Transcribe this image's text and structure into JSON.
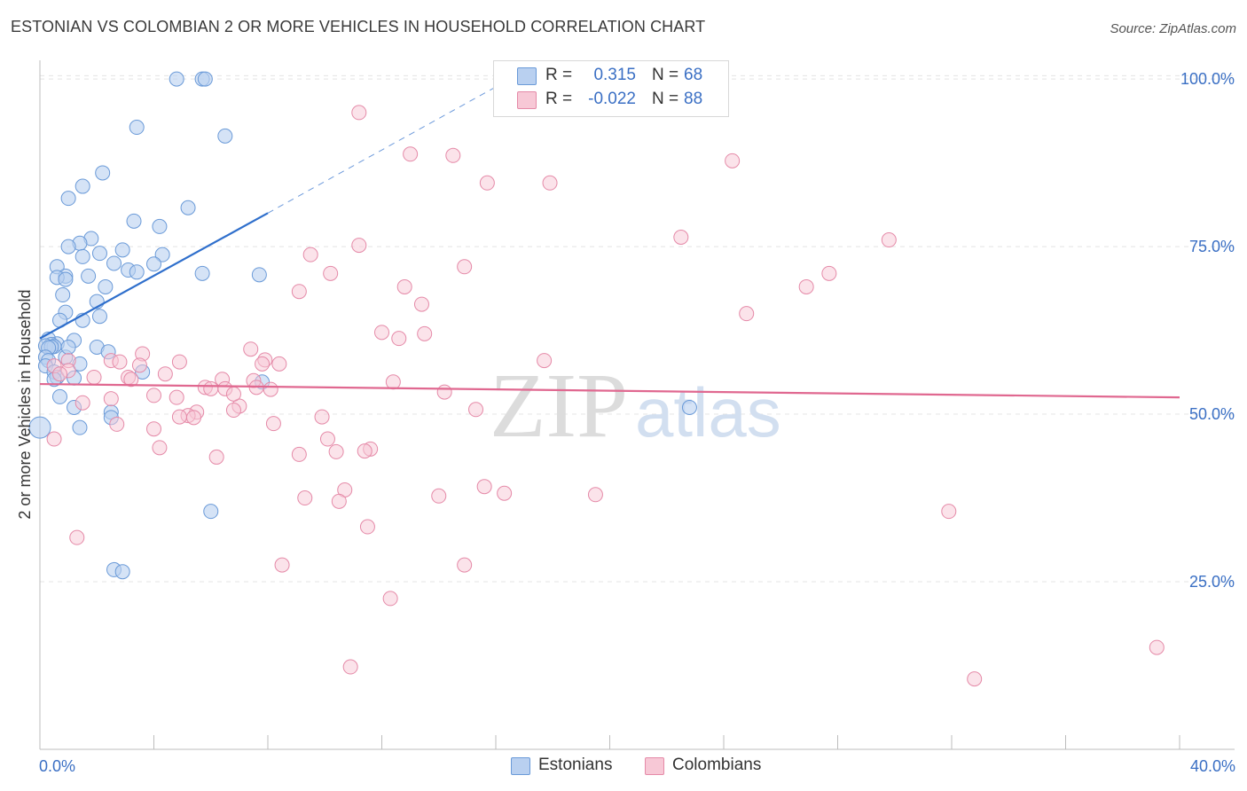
{
  "title": "ESTONIAN VS COLOMBIAN 2 OR MORE VEHICLES IN HOUSEHOLD CORRELATION CHART",
  "source": "Source: ZipAtlas.com",
  "watermark": {
    "zip": "ZIP",
    "atlas": "atlas"
  },
  "legend_top": {
    "rows": [
      {
        "r_label": "R =",
        "r_value": "0.315",
        "n_label": "N =",
        "n_value": "68"
      },
      {
        "r_label": "R =",
        "r_value": "-0.022",
        "n_label": "N =",
        "n_value": "88"
      }
    ]
  },
  "legend_bottom": {
    "items": [
      "Estonians",
      "Colombians"
    ]
  },
  "colors": {
    "estonians_fill": "#b9d0f0",
    "estonians_stroke": "#6a9ad8",
    "estonians_line": "#2f6fcc",
    "colombians_fill": "#f7c8d6",
    "colombians_stroke": "#e58aa8",
    "colombians_line": "#e06890",
    "tick_label": "#3a6fc4",
    "grid": "#e4e4e4"
  },
  "chart_data": {
    "type": "scatter",
    "title": "ESTONIAN VS COLOMBIAN 2 OR MORE VEHICLES IN HOUSEHOLD CORRELATION CHART",
    "xlabel": "",
    "ylabel": "2 or more Vehicles in Household",
    "xlim": [
      0,
      40
    ],
    "ylim": [
      0,
      102
    ],
    "x_tick_labels": [
      "0.0%",
      "40.0%"
    ],
    "y_ticks": [
      25,
      50,
      75,
      100
    ],
    "y_tick_labels": [
      "25.0%",
      "50.0%",
      "75.0%",
      "100.0%"
    ],
    "grid": true,
    "series": [
      {
        "name": "Estonians",
        "r": 0.315,
        "n": 68,
        "trend": {
          "x0": 0,
          "y0": 61.3,
          "x1": 8.0,
          "y1": 80.0,
          "dash_to_x": 16.5,
          "dash_to_y": 100.0
        },
        "points": [
          [
            4.8,
            100
          ],
          [
            5.7,
            100
          ],
          [
            5.8,
            100
          ],
          [
            3.4,
            92.8
          ],
          [
            6.5,
            91.5
          ],
          [
            2.2,
            86
          ],
          [
            1.5,
            84
          ],
          [
            1.0,
            82.2
          ],
          [
            5.2,
            80.8
          ],
          [
            3.3,
            78.8
          ],
          [
            4.2,
            78
          ],
          [
            1.8,
            76.2
          ],
          [
            1.4,
            75.5
          ],
          [
            1.0,
            75
          ],
          [
            2.9,
            74.5
          ],
          [
            2.1,
            74
          ],
          [
            1.5,
            73.5
          ],
          [
            4.3,
            73.8
          ],
          [
            2.6,
            72.5
          ],
          [
            4.0,
            72.4
          ],
          [
            0.6,
            72
          ],
          [
            3.1,
            71.5
          ],
          [
            3.4,
            71.2
          ],
          [
            5.7,
            71
          ],
          [
            7.7,
            70.8
          ],
          [
            1.7,
            70.6
          ],
          [
            0.9,
            70.6
          ],
          [
            0.6,
            70.4
          ],
          [
            0.9,
            70.1
          ],
          [
            2.3,
            69
          ],
          [
            0.8,
            67.8
          ],
          [
            2.0,
            66.8
          ],
          [
            0.9,
            65.2
          ],
          [
            2.1,
            64.6
          ],
          [
            0.7,
            64
          ],
          [
            1.5,
            64
          ],
          [
            0.3,
            61.2
          ],
          [
            1.2,
            61
          ],
          [
            0.6,
            60.5
          ],
          [
            2.0,
            60
          ],
          [
            0.4,
            60.4
          ],
          [
            0.2,
            60.2
          ],
          [
            0.5,
            60.1
          ],
          [
            0.4,
            60
          ],
          [
            0.3,
            59.9
          ],
          [
            2.4,
            59.3
          ],
          [
            0.2,
            58.5
          ],
          [
            0.3,
            58
          ],
          [
            0.9,
            58.5
          ],
          [
            1.4,
            57.5
          ],
          [
            0.2,
            57.2
          ],
          [
            0.5,
            56.3
          ],
          [
            3.6,
            56.3
          ],
          [
            0.6,
            55.5
          ],
          [
            1.2,
            55.4
          ],
          [
            7.8,
            54.8
          ],
          [
            0.7,
            52.6
          ],
          [
            2.5,
            50.3
          ],
          [
            1.2,
            51
          ],
          [
            22.8,
            51
          ],
          [
            2.5,
            49.5
          ],
          [
            1.4,
            48
          ],
          [
            0.0,
            48
          ],
          [
            6.0,
            35.5
          ],
          [
            2.6,
            26.8
          ],
          [
            2.9,
            26.5
          ],
          [
            0.5,
            55.2
          ],
          [
            1.0,
            60.0
          ]
        ]
      },
      {
        "name": "Colombians",
        "r": -0.022,
        "n": 88,
        "trend": {
          "x0": 0,
          "y0": 54.5,
          "x1": 40,
          "y1": 52.5
        },
        "points": [
          [
            11.2,
            95
          ],
          [
            13.0,
            88.8
          ],
          [
            14.5,
            88.6
          ],
          [
            24.3,
            87.8
          ],
          [
            15.7,
            84.5
          ],
          [
            17.9,
            84.5
          ],
          [
            22.5,
            76.4
          ],
          [
            29.8,
            76
          ],
          [
            11.2,
            75.2
          ],
          [
            9.5,
            73.8
          ],
          [
            14.9,
            72
          ],
          [
            27.7,
            71
          ],
          [
            10.2,
            71
          ],
          [
            12.8,
            69
          ],
          [
            26.9,
            69
          ],
          [
            9.1,
            68.3
          ],
          [
            13.4,
            66.4
          ],
          [
            24.8,
            65
          ],
          [
            12.0,
            62.2
          ],
          [
            12.6,
            61.3
          ],
          [
            7.4,
            59.7
          ],
          [
            3.6,
            59
          ],
          [
            7.9,
            58.1
          ],
          [
            2.5,
            58
          ],
          [
            17.7,
            58
          ],
          [
            1.0,
            58
          ],
          [
            2.8,
            57.8
          ],
          [
            4.9,
            57.8
          ],
          [
            7.8,
            57.5
          ],
          [
            8.4,
            57.5
          ],
          [
            3.5,
            57.3
          ],
          [
            0.5,
            57.2
          ],
          [
            1.0,
            56.5
          ],
          [
            0.7,
            56
          ],
          [
            4.4,
            56
          ],
          [
            3.1,
            55.5
          ],
          [
            3.2,
            55.2
          ],
          [
            1.9,
            55.5
          ],
          [
            6.4,
            55.2
          ],
          [
            7.5,
            55
          ],
          [
            12.4,
            54.8
          ],
          [
            5.8,
            54
          ],
          [
            7.6,
            54
          ],
          [
            8.1,
            53.7
          ],
          [
            6.0,
            53.8
          ],
          [
            6.5,
            53.8
          ],
          [
            14.2,
            53.3
          ],
          [
            4.0,
            52.8
          ],
          [
            4.8,
            52.5
          ],
          [
            2.5,
            52.3
          ],
          [
            1.5,
            51.7
          ],
          [
            7.0,
            51.2
          ],
          [
            6.8,
            50.6
          ],
          [
            15.3,
            50.7
          ],
          [
            5.5,
            50.3
          ],
          [
            5.2,
            49.8
          ],
          [
            4.9,
            49.6
          ],
          [
            5.4,
            49.5
          ],
          [
            9.9,
            49.6
          ],
          [
            8.2,
            48.6
          ],
          [
            4.0,
            47.8
          ],
          [
            10.1,
            46.3
          ],
          [
            4.2,
            45
          ],
          [
            11.6,
            44.8
          ],
          [
            6.2,
            43.6
          ],
          [
            9.1,
            44
          ],
          [
            10.4,
            44.4
          ],
          [
            0.5,
            46.3
          ],
          [
            15.6,
            39.2
          ],
          [
            16.3,
            38.2
          ],
          [
            10.7,
            38.7
          ],
          [
            14.0,
            37.8
          ],
          [
            9.3,
            37.5
          ],
          [
            10.5,
            37
          ],
          [
            19.5,
            38
          ],
          [
            31.9,
            35.5
          ],
          [
            11.5,
            33.2
          ],
          [
            1.3,
            31.6
          ],
          [
            8.5,
            27.5
          ],
          [
            14.9,
            27.5
          ],
          [
            12.3,
            22.5
          ],
          [
            10.9,
            12.3
          ],
          [
            39.2,
            15.2
          ],
          [
            32.8,
            10.5
          ],
          [
            2.7,
            48.5
          ],
          [
            6.8,
            53.0
          ],
          [
            13.5,
            62.0
          ],
          [
            11.4,
            44.5
          ]
        ]
      }
    ]
  }
}
